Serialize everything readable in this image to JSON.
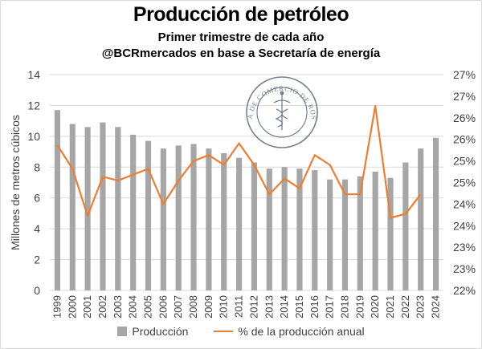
{
  "header": {
    "title": "Producción de petróleo",
    "subtitle1": "Primer trimestre de cada año",
    "subtitle2": "@BCRmercados en base a Secretaría de energía"
  },
  "logo": {
    "text": "BOLSA DE COMERCIO DE ROSARIO"
  },
  "colors": {
    "bar": "#a6a6a6",
    "line": "#ed7d31",
    "grid": "#d9d9d9",
    "text": "#404040"
  },
  "chart_data": {
    "type": "bar",
    "categories": [
      "1999",
      "2000",
      "2001",
      "2002",
      "2003",
      "2004",
      "2005",
      "2006",
      "2007",
      "2008",
      "2009",
      "2010",
      "2011",
      "2012",
      "2013",
      "2014",
      "2015",
      "2016",
      "2017",
      "2018",
      "2019",
      "2020",
      "2021",
      "2022",
      "2023",
      "2024"
    ],
    "ylabel": "Millones de metros cúbicos",
    "ylim": [
      0,
      14
    ],
    "yticks": [
      "0",
      "2",
      "4",
      "6",
      "8",
      "10",
      "12",
      "14"
    ],
    "y2lim": [
      22,
      27.5
    ],
    "y2ticks": [
      "22%",
      "23%",
      "23%",
      "24%",
      "24%",
      "25%",
      "25%",
      "26%",
      "26%",
      "27%",
      "27%"
    ],
    "grid": true,
    "legend_position": "bottom",
    "series": [
      {
        "name": "Producción",
        "type": "bar",
        "axis": "left",
        "values": [
          11.7,
          10.8,
          10.6,
          10.9,
          10.6,
          10.1,
          9.7,
          9.2,
          9.4,
          9.5,
          9.2,
          8.9,
          8.6,
          8.3,
          7.9,
          8.0,
          7.9,
          7.8,
          7.2,
          7.2,
          7.4,
          7.7,
          7.3,
          8.3,
          9.2,
          9.9
        ]
      },
      {
        "name": "% de la producción anual",
        "type": "line",
        "axis": "right",
        "values": [
          25.7,
          25.1,
          23.9,
          24.9,
          24.8,
          24.95,
          25.1,
          24.2,
          24.8,
          25.3,
          25.45,
          25.2,
          25.75,
          25.2,
          24.45,
          24.85,
          24.6,
          25.45,
          25.2,
          24.45,
          24.45,
          26.7,
          23.85,
          23.95,
          24.45,
          null
        ]
      }
    ]
  }
}
